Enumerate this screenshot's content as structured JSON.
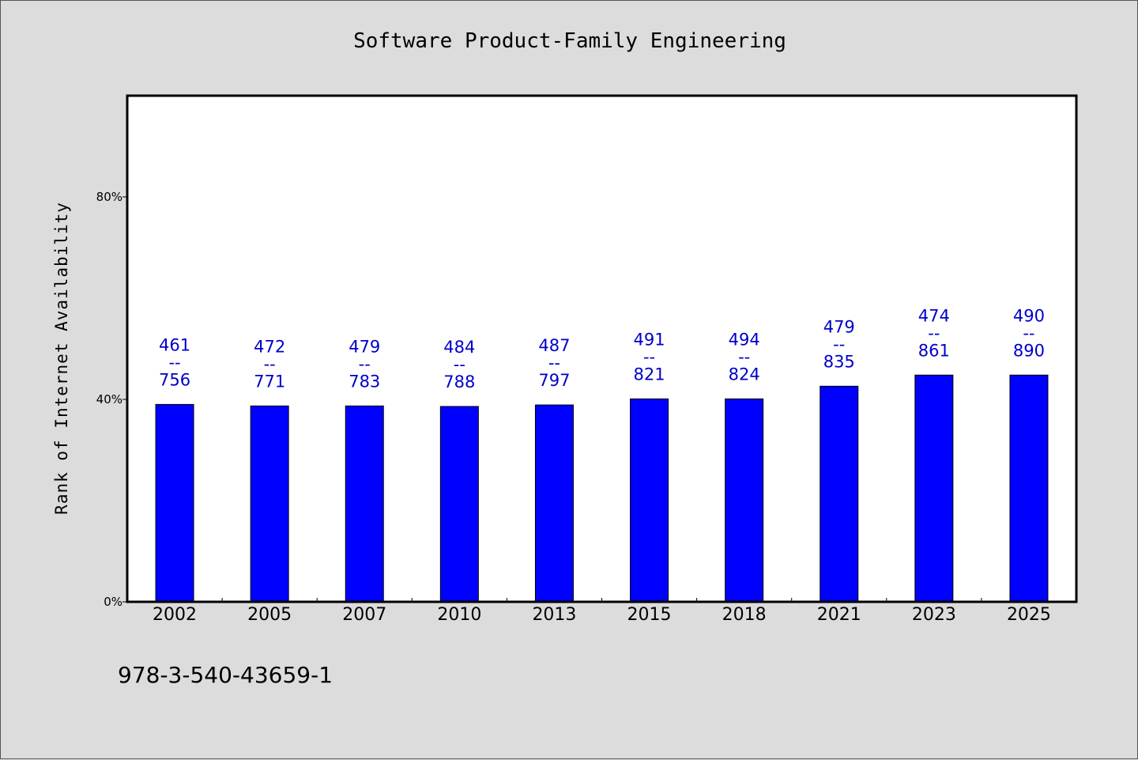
{
  "chart_data": {
    "type": "bar",
    "title": "Software Product-Family Engineering",
    "ylabel": "Rank of Internet Availability",
    "xlabel": "",
    "categories": [
      "2002",
      "2005",
      "2007",
      "2010",
      "2013",
      "2015",
      "2018",
      "2021",
      "2023",
      "2025"
    ],
    "values": [
      39,
      38.7,
      38.7,
      38.6,
      38.9,
      40.1,
      40.1,
      42.6,
      44.8,
      44.8
    ],
    "ylim": [
      0,
      100
    ],
    "yticks": [
      {
        "value": 0,
        "label": "0%"
      },
      {
        "value": 40,
        "label": "40%"
      },
      {
        "value": 80,
        "label": "80%"
      }
    ],
    "annotations": [
      {
        "top": "461",
        "sep": "--",
        "bottom": "756"
      },
      {
        "top": "472",
        "sep": "--",
        "bottom": "771"
      },
      {
        "top": "479",
        "sep": "--",
        "bottom": "783"
      },
      {
        "top": "484",
        "sep": "--",
        "bottom": "788"
      },
      {
        "top": "487",
        "sep": "--",
        "bottom": "797"
      },
      {
        "top": "491",
        "sep": "--",
        "bottom": "821"
      },
      {
        "top": "494",
        "sep": "--",
        "bottom": "824"
      },
      {
        "top": "479",
        "sep": "--",
        "bottom": "835"
      },
      {
        "top": "474",
        "sep": "--",
        "bottom": "861"
      },
      {
        "top": "490",
        "sep": "--",
        "bottom": "890"
      }
    ],
    "grid": false,
    "bar_color": "#0000ff",
    "label_color": "#0000cc"
  },
  "footer": {
    "isbn": "978-3-540-43659-1"
  }
}
